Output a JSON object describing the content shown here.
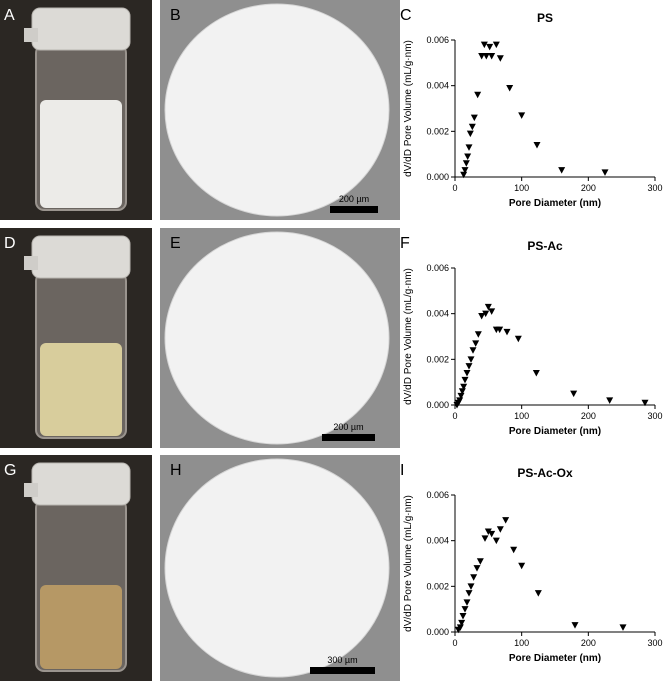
{
  "panel_labels": [
    "A",
    "B",
    "C",
    "D",
    "E",
    "F",
    "G",
    "H",
    "I"
  ],
  "scale_bars": [
    "200 µm",
    "200 µm",
    "300 µm"
  ],
  "chart_data": [
    {
      "type": "scatter",
      "title": "PS",
      "xlabel": "Pore Diameter (nm)",
      "ylabel": "dV/dD Pore Volume (mL/g·nm)",
      "color": "#000000",
      "marker": "triangle-down",
      "xlim": [
        0,
        300
      ],
      "ylim": [
        0,
        0.006
      ],
      "xticks": [
        0,
        100,
        200,
        300
      ],
      "yticks": [
        {
          "value": 0,
          "label": "0.000"
        },
        {
          "value": 0.002,
          "label": "0.002"
        },
        {
          "value": 0.004,
          "label": "0.004"
        },
        {
          "value": 0.006,
          "label": "0.006"
        }
      ],
      "x": [
        13,
        15,
        17,
        19,
        21,
        23,
        26,
        29,
        34,
        40,
        44,
        47,
        52,
        55,
        62,
        68,
        82,
        100,
        123,
        160,
        225
      ],
      "values": [
        0.0001,
        0.0003,
        0.0006,
        0.0009,
        0.0013,
        0.0019,
        0.0022,
        0.0026,
        0.0036,
        0.0053,
        0.0058,
        0.0053,
        0.0057,
        0.0053,
        0.0058,
        0.0052,
        0.0039,
        0.0027,
        0.0014,
        0.0003,
        0.0002
      ]
    },
    {
      "type": "scatter",
      "title": "PS-Ac",
      "xlabel": "Pore Diameter (nm)",
      "ylabel": "dV/dD Pore Volume (mL/g·nm)",
      "color": "#000000",
      "marker": "triangle-down",
      "xlim": [
        0,
        300
      ],
      "ylim": [
        0,
        0.006
      ],
      "xticks": [
        0,
        100,
        200,
        300
      ],
      "yticks": [
        {
          "value": 0,
          "label": "0.000"
        },
        {
          "value": 0.002,
          "label": "0.002"
        },
        {
          "value": 0.004,
          "label": "0.004"
        },
        {
          "value": 0.006,
          "label": "0.006"
        }
      ],
      "x": [
        3,
        5,
        7,
        9,
        11,
        13,
        15,
        18,
        21,
        24,
        27,
        31,
        35,
        40,
        46,
        50,
        55,
        62,
        67,
        78,
        95,
        122,
        178,
        232,
        285
      ],
      "values": [
        0,
        0.0001,
        0.0002,
        0.0004,
        0.0006,
        0.0008,
        0.0011,
        0.0014,
        0.0017,
        0.002,
        0.0024,
        0.0027,
        0.0031,
        0.0039,
        0.004,
        0.0043,
        0.0041,
        0.0033,
        0.0033,
        0.0032,
        0.0029,
        0.0014,
        0.0005,
        0.0002,
        0.0001
      ]
    },
    {
      "type": "scatter",
      "title": "PS-Ac-Ox",
      "xlabel": "Pore Diameter (nm)",
      "ylabel": "dV/dD Pore Volume (mL/g·nm)",
      "color": "#000000",
      "marker": "triangle-down",
      "xlim": [
        0,
        300
      ],
      "ylim": [
        0,
        0.006
      ],
      "xticks": [
        0,
        100,
        200,
        300
      ],
      "yticks": [
        {
          "value": 0,
          "label": "0.000"
        },
        {
          "value": 0.002,
          "label": "0.002"
        },
        {
          "value": 0.004,
          "label": "0.004"
        },
        {
          "value": 0.006,
          "label": "0.006"
        }
      ],
      "x": [
        5,
        8,
        10,
        12,
        15,
        18,
        21,
        24,
        28,
        33,
        38,
        45,
        50,
        55,
        62,
        68,
        76,
        88,
        100,
        125,
        180,
        252
      ],
      "values": [
        0.0001,
        0.0002,
        0.0004,
        0.0007,
        0.001,
        0.0013,
        0.0017,
        0.002,
        0.0024,
        0.0028,
        0.0031,
        0.0041,
        0.0044,
        0.0043,
        0.004,
        0.0045,
        0.0049,
        0.0036,
        0.0029,
        0.0017,
        0.0003,
        0.0002
      ]
    }
  ]
}
